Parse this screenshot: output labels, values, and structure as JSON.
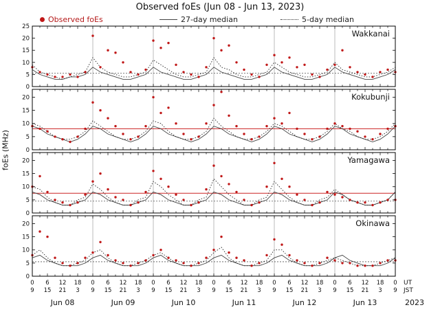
{
  "title": "Observed foEs (Jun 08 - Jun 13, 2023)",
  "legend": {
    "observed": "Observed foEs",
    "median27": "27-day median",
    "median5": "5-day median"
  },
  "y_axis_label": "foEs (MHz)",
  "x_axis": {
    "ut_label": "UT",
    "jst_label": "JST",
    "year": "2023",
    "tick_step_hours": 6,
    "hours_total": 144,
    "ut_cycle": [
      "0",
      "6",
      "12",
      "18"
    ],
    "jst_cycle": [
      "9",
      "15",
      "21",
      "3"
    ],
    "day_labels": [
      "Jun 08",
      "Jun 09",
      "Jun 10",
      "Jun 11",
      "Jun 12",
      "Jun 13"
    ]
  },
  "colors": {
    "observed": "#c01818",
    "median27": "#444444",
    "median5": "#222222",
    "grid": "#aaaaaa",
    "frame": "#000000",
    "red_ref": "#cc2222",
    "dashed_ref": "#555555"
  },
  "chart_data": {
    "type": "scatter",
    "hours_step": 3,
    "x_range_hours": [
      0,
      144
    ],
    "panels": [
      {
        "station": "Wakkanai",
        "ylim": [
          0,
          25
        ],
        "yticks": [
          0,
          5,
          10,
          15,
          20,
          25
        ],
        "red_ref": null,
        "dashed_ref": 5.5,
        "observed": [
          8,
          6,
          5,
          4,
          4,
          5,
          4,
          6,
          21,
          8,
          15,
          14,
          10,
          6,
          5,
          7,
          19,
          16,
          18,
          9,
          6,
          5,
          4,
          8,
          20,
          15,
          17,
          10,
          7,
          5,
          4,
          9,
          13,
          10,
          12,
          8,
          9,
          5,
          4,
          7,
          9,
          15,
          8,
          6,
          5,
          4,
          6,
          7,
          6
        ],
        "median27": [
          7,
          5,
          4,
          3,
          3,
          4,
          4,
          5,
          8,
          6,
          5,
          4,
          3,
          3,
          4,
          5,
          8,
          6,
          5,
          4,
          3,
          3,
          4,
          5,
          8,
          6,
          5,
          4,
          3,
          3,
          4,
          5,
          8,
          6,
          5,
          4,
          3,
          3,
          4,
          5,
          8,
          6,
          5,
          4,
          3,
          3,
          4,
          5,
          7
        ],
        "median5": [
          9,
          6,
          5,
          4,
          3,
          4,
          5,
          6,
          12,
          8,
          6,
          5,
          4,
          4,
          5,
          6,
          11,
          9,
          7,
          5,
          4,
          4,
          5,
          6,
          12,
          8,
          7,
          5,
          4,
          4,
          5,
          6,
          10,
          8,
          6,
          5,
          4,
          4,
          5,
          6,
          10,
          7,
          6,
          5,
          4,
          4,
          5,
          6,
          8
        ]
      },
      {
        "station": "Kokubunji",
        "ylim": [
          0,
          23
        ],
        "yticks": [
          0,
          5,
          10,
          15,
          20
        ],
        "red_ref": 8,
        "dashed_ref": null,
        "observed": [
          9,
          8,
          7,
          5,
          4,
          3,
          5,
          8,
          18,
          15,
          12,
          9,
          6,
          4,
          5,
          9,
          20,
          14,
          16,
          10,
          6,
          4,
          5,
          10,
          17,
          22,
          13,
          9,
          6,
          4,
          5,
          9,
          12,
          10,
          14,
          8,
          6,
          4,
          5,
          8,
          10,
          9,
          8,
          7,
          5,
          4,
          6,
          8,
          9
        ],
        "median27": [
          9,
          8,
          6,
          5,
          4,
          3,
          4,
          6,
          9,
          8,
          6,
          5,
          4,
          3,
          4,
          6,
          9,
          8,
          6,
          5,
          4,
          3,
          4,
          6,
          9,
          8,
          6,
          5,
          4,
          3,
          4,
          6,
          9,
          8,
          6,
          5,
          4,
          3,
          4,
          6,
          9,
          8,
          6,
          5,
          4,
          3,
          4,
          6,
          9
        ],
        "median5": [
          10,
          9,
          7,
          5,
          4,
          4,
          5,
          7,
          11,
          9,
          7,
          5,
          4,
          4,
          5,
          7,
          11,
          10,
          7,
          5,
          4,
          4,
          5,
          7,
          12,
          9,
          7,
          5,
          4,
          4,
          5,
          7,
          10,
          9,
          7,
          5,
          4,
          4,
          5,
          7,
          10,
          8,
          7,
          5,
          4,
          4,
          5,
          7,
          10
        ]
      },
      {
        "station": "Yamagawa",
        "ylim": [
          0,
          23
        ],
        "yticks": [
          0,
          5,
          10,
          15,
          20
        ],
        "red_ref": 7.5,
        "dashed_ref": 4.5,
        "observed": [
          10,
          14,
          8,
          5,
          4,
          3,
          4,
          7,
          12,
          15,
          9,
          6,
          5,
          3,
          4,
          8,
          16,
          13,
          10,
          7,
          5,
          3,
          4,
          9,
          18,
          14,
          11,
          8,
          5,
          3,
          4,
          10,
          19,
          13,
          10,
          7,
          5,
          3,
          4,
          8,
          7,
          6,
          5,
          4,
          4,
          3,
          4,
          5,
          5
        ],
        "median27": [
          8,
          7,
          5,
          4,
          3,
          3,
          4,
          5,
          8,
          7,
          5,
          4,
          3,
          3,
          4,
          5,
          8,
          7,
          5,
          4,
          3,
          3,
          4,
          5,
          8,
          7,
          5,
          4,
          3,
          3,
          4,
          5,
          8,
          7,
          5,
          4,
          3,
          3,
          4,
          5,
          8,
          7,
          5,
          4,
          3,
          3,
          4,
          5,
          8
        ],
        "median5": [
          10,
          9,
          6,
          4,
          3,
          3,
          5,
          6,
          11,
          9,
          6,
          4,
          3,
          3,
          5,
          6,
          12,
          10,
          7,
          5,
          3,
          3,
          5,
          6,
          13,
          10,
          7,
          5,
          3,
          3,
          5,
          6,
          12,
          9,
          6,
          4,
          3,
          3,
          5,
          6,
          9,
          7,
          5,
          4,
          3,
          3,
          4,
          5,
          8
        ]
      },
      {
        "station": "Okinawa",
        "ylim": [
          0,
          23
        ],
        "yticks": [
          0,
          5,
          10,
          15,
          20
        ],
        "red_ref": null,
        "dashed_ref": 5.5,
        "observed": [
          8,
          17,
          15,
          7,
          5,
          4,
          5,
          7,
          9,
          13,
          8,
          6,
          5,
          4,
          5,
          6,
          8,
          10,
          7,
          6,
          5,
          4,
          5,
          7,
          10,
          15,
          9,
          7,
          6,
          4,
          5,
          8,
          14,
          12,
          8,
          6,
          5,
          4,
          5,
          7,
          6,
          5,
          5,
          4,
          4,
          4,
          5,
          6,
          6
        ],
        "median27": [
          7,
          8,
          6,
          5,
          4,
          4,
          4,
          5,
          7,
          8,
          6,
          5,
          4,
          4,
          4,
          5,
          7,
          8,
          6,
          5,
          4,
          4,
          4,
          5,
          7,
          8,
          6,
          5,
          4,
          4,
          4,
          5,
          7,
          8,
          6,
          5,
          4,
          4,
          4,
          5,
          7,
          8,
          6,
          5,
          4,
          4,
          4,
          5,
          7
        ],
        "median5": [
          8,
          10,
          7,
          5,
          4,
          4,
          5,
          6,
          9,
          10,
          7,
          5,
          4,
          4,
          5,
          6,
          8,
          9,
          7,
          5,
          4,
          4,
          5,
          6,
          9,
          11,
          7,
          5,
          4,
          4,
          5,
          6,
          10,
          10,
          7,
          5,
          4,
          4,
          5,
          6,
          7,
          6,
          5,
          4,
          4,
          4,
          5,
          6,
          7
        ]
      }
    ]
  }
}
